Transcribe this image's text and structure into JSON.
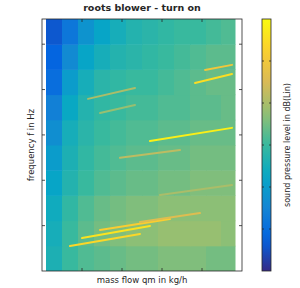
{
  "chart_data": {
    "type": "heatmap",
    "title": "roots blower - turn on",
    "x_label": "mass flow qm in kg/h",
    "y_label": "frequency f in Hz",
    "colorbar_label": "sound pressure level in dB(Lin)",
    "tick_labels": false,
    "grid": false,
    "xlim": [
      0,
      100
    ],
    "ylim": [
      0,
      100
    ],
    "xticks": [
      20,
      40,
      60,
      80
    ],
    "yticks": [
      18,
      36,
      54,
      72,
      90
    ],
    "x": [
      6,
      14,
      22,
      30,
      38,
      46,
      54,
      62,
      70,
      78,
      86,
      93
    ],
    "y": [
      5,
      15,
      25,
      35,
      45,
      55,
      65,
      75,
      85,
      95
    ],
    "values": [
      [
        56,
        60,
        62,
        63,
        64,
        65,
        65,
        66,
        66,
        66,
        65,
        65
      ],
      [
        55,
        60,
        63,
        65,
        66,
        67,
        67,
        68,
        68,
        68,
        68,
        67
      ],
      [
        54,
        59,
        62,
        64,
        65,
        66,
        66,
        67,
        67,
        67,
        67,
        67
      ],
      [
        52,
        57,
        60,
        62,
        63,
        64,
        64,
        65,
        65,
        66,
        66,
        66
      ],
      [
        50,
        56,
        59,
        61,
        62,
        63,
        63,
        64,
        64,
        65,
        65,
        65
      ],
      [
        47,
        55,
        58,
        60,
        61,
        62,
        62,
        63,
        63,
        64,
        64,
        64
      ],
      [
        44,
        53,
        57,
        59,
        60,
        61,
        61,
        62,
        62,
        63,
        63,
        64
      ],
      [
        40,
        50,
        55,
        58,
        59,
        60,
        60,
        61,
        62,
        63,
        64,
        64
      ],
      [
        38,
        46,
        52,
        55,
        57,
        58,
        59,
        60,
        61,
        62,
        63,
        63
      ],
      [
        36,
        42,
        48,
        52,
        55,
        57,
        58,
        59,
        60,
        60,
        61,
        62
      ]
    ],
    "colorbar": {
      "range": [
        30,
        90
      ],
      "ticks": [
        40,
        50,
        60,
        70,
        80
      ]
    },
    "series": [
      {
        "type": "line",
        "x": [
          76.5,
          95
        ],
        "values": [
          74.6,
          78.2
        ],
        "level": 85
      },
      {
        "type": "line",
        "x": [
          81.5,
          95
        ],
        "values": [
          79.8,
          81.8
        ],
        "level": 80
      },
      {
        "type": "line",
        "x": [
          23,
          46.5
        ],
        "values": [
          68.3,
          72.6
        ],
        "level": 70
      },
      {
        "type": "line",
        "x": [
          29,
          46.5
        ],
        "values": [
          62.7,
          65.9
        ],
        "level": 68
      },
      {
        "type": "line",
        "x": [
          54,
          95
        ],
        "values": [
          51.6,
          56.8
        ],
        "level": 88
      },
      {
        "type": "line",
        "x": [
          39,
          69
        ],
        "values": [
          44.9,
          48.0
        ],
        "level": 72
      },
      {
        "type": "line",
        "x": [
          14,
          49
        ],
        "values": [
          9.9,
          14.7
        ],
        "level": 84
      },
      {
        "type": "line",
        "x": [
          20,
          54
        ],
        "values": [
          13.1,
          17.9
        ],
        "level": 86
      },
      {
        "type": "line",
        "x": [
          29,
          64
        ],
        "values": [
          16.3,
          20.6
        ],
        "level": 82
      },
      {
        "type": "line",
        "x": [
          49,
          79
        ],
        "values": [
          19.4,
          23.0
        ],
        "level": 76
      },
      {
        "type": "line",
        "x": [
          59,
          95
        ],
        "values": [
          30.2,
          34.1
        ],
        "level": 70
      }
    ]
  }
}
